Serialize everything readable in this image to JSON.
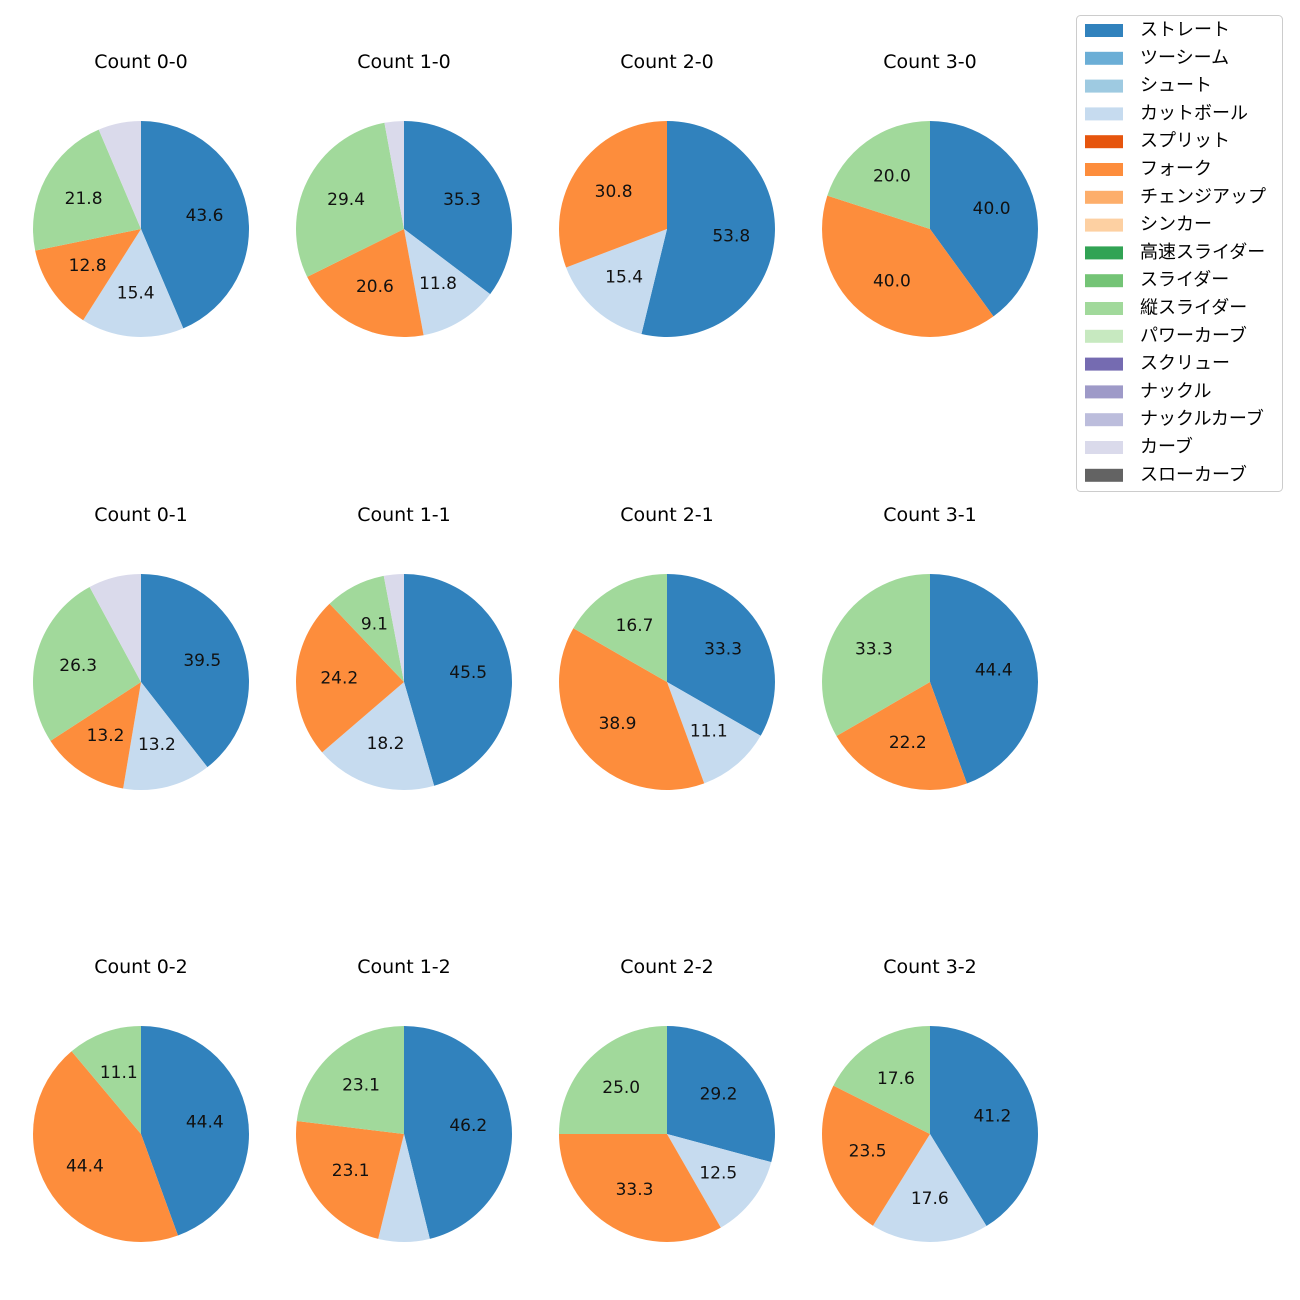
{
  "chart_data": {
    "type": "pie",
    "legend": {
      "placement": "top-right",
      "entries": [
        {
          "name": "ストレート",
          "color": "#3182bd"
        },
        {
          "name": "ツーシーム",
          "color": "#6baed6"
        },
        {
          "name": "シュート",
          "color": "#9ecae1"
        },
        {
          "name": "カットボール",
          "color": "#c6dbef"
        },
        {
          "name": "スプリット",
          "color": "#e6550d"
        },
        {
          "name": "フォーク",
          "color": "#fd8d3c"
        },
        {
          "name": "チェンジアップ",
          "color": "#fdae6b"
        },
        {
          "name": "シンカー",
          "color": "#fdd0a2"
        },
        {
          "name": "高速スライダー",
          "color": "#31a354"
        },
        {
          "name": "スライダー",
          "color": "#74c476"
        },
        {
          "name": "縦スライダー",
          "color": "#a1d99b"
        },
        {
          "name": "パワーカーブ",
          "color": "#c7e9c0"
        },
        {
          "name": "スクリュー",
          "color": "#756bb1"
        },
        {
          "name": "ナックル",
          "color": "#9e9ac8"
        },
        {
          "name": "ナックルカーブ",
          "color": "#bcbddc"
        },
        {
          "name": "カーブ",
          "color": "#dadaeb"
        },
        {
          "name": "スローカーブ",
          "color": "#636363"
        }
      ]
    },
    "charts": [
      {
        "title": "Count 0-0",
        "slices": [
          {
            "pitch": "ストレート",
            "value": 43.6,
            "label": "43.6"
          },
          {
            "pitch": "カットボール",
            "value": 15.4,
            "label": "15.4"
          },
          {
            "pitch": "フォーク",
            "value": 12.8,
            "label": "12.8"
          },
          {
            "pitch": "縦スライダー",
            "value": 21.8,
            "label": "21.8"
          },
          {
            "pitch": "カーブ",
            "value": 6.4,
            "label": ""
          }
        ]
      },
      {
        "title": "Count 1-0",
        "slices": [
          {
            "pitch": "ストレート",
            "value": 35.3,
            "label": "35.3"
          },
          {
            "pitch": "カットボール",
            "value": 11.8,
            "label": "11.8"
          },
          {
            "pitch": "フォーク",
            "value": 20.6,
            "label": "20.6"
          },
          {
            "pitch": "縦スライダー",
            "value": 29.4,
            "label": "29.4"
          },
          {
            "pitch": "カーブ",
            "value": 2.9,
            "label": ""
          }
        ]
      },
      {
        "title": "Count 2-0",
        "slices": [
          {
            "pitch": "ストレート",
            "value": 53.8,
            "label": "53.8"
          },
          {
            "pitch": "カットボール",
            "value": 15.4,
            "label": "15.4"
          },
          {
            "pitch": "フォーク",
            "value": 30.8,
            "label": "30.8"
          }
        ]
      },
      {
        "title": "Count 3-0",
        "slices": [
          {
            "pitch": "ストレート",
            "value": 40.0,
            "label": "40.0"
          },
          {
            "pitch": "フォーク",
            "value": 40.0,
            "label": "40.0"
          },
          {
            "pitch": "縦スライダー",
            "value": 20.0,
            "label": "20.0"
          }
        ]
      },
      {
        "title": "Count 0-1",
        "slices": [
          {
            "pitch": "ストレート",
            "value": 39.5,
            "label": "39.5"
          },
          {
            "pitch": "カットボール",
            "value": 13.2,
            "label": "13.2"
          },
          {
            "pitch": "フォーク",
            "value": 13.2,
            "label": "13.2"
          },
          {
            "pitch": "縦スライダー",
            "value": 26.3,
            "label": "26.3"
          },
          {
            "pitch": "カーブ",
            "value": 7.9,
            "label": ""
          }
        ]
      },
      {
        "title": "Count 1-1",
        "slices": [
          {
            "pitch": "ストレート",
            "value": 45.5,
            "label": "45.5"
          },
          {
            "pitch": "カットボール",
            "value": 18.2,
            "label": "18.2"
          },
          {
            "pitch": "フォーク",
            "value": 24.2,
            "label": "24.2"
          },
          {
            "pitch": "縦スライダー",
            "value": 9.1,
            "label": "9.1"
          },
          {
            "pitch": "カーブ",
            "value": 3.0,
            "label": ""
          }
        ]
      },
      {
        "title": "Count 2-1",
        "slices": [
          {
            "pitch": "ストレート",
            "value": 33.3,
            "label": "33.3"
          },
          {
            "pitch": "カットボール",
            "value": 11.1,
            "label": "11.1"
          },
          {
            "pitch": "フォーク",
            "value": 38.9,
            "label": "38.9"
          },
          {
            "pitch": "縦スライダー",
            "value": 16.7,
            "label": "16.7"
          }
        ]
      },
      {
        "title": "Count 3-1",
        "slices": [
          {
            "pitch": "ストレート",
            "value": 44.4,
            "label": "44.4"
          },
          {
            "pitch": "フォーク",
            "value": 22.2,
            "label": "22.2"
          },
          {
            "pitch": "縦スライダー",
            "value": 33.3,
            "label": "33.3"
          }
        ]
      },
      {
        "title": "Count 0-2",
        "slices": [
          {
            "pitch": "ストレート",
            "value": 44.4,
            "label": "44.4"
          },
          {
            "pitch": "フォーク",
            "value": 44.4,
            "label": "44.4"
          },
          {
            "pitch": "縦スライダー",
            "value": 11.1,
            "label": "11.1"
          }
        ]
      },
      {
        "title": "Count 1-2",
        "slices": [
          {
            "pitch": "ストレート",
            "value": 46.2,
            "label": "46.2"
          },
          {
            "pitch": "カットボール",
            "value": 7.7,
            "label": ""
          },
          {
            "pitch": "フォーク",
            "value": 23.1,
            "label": "23.1"
          },
          {
            "pitch": "縦スライダー",
            "value": 23.1,
            "label": "23.1"
          }
        ]
      },
      {
        "title": "Count 2-2",
        "slices": [
          {
            "pitch": "ストレート",
            "value": 29.2,
            "label": "29.2"
          },
          {
            "pitch": "カットボール",
            "value": 12.5,
            "label": "12.5"
          },
          {
            "pitch": "フォーク",
            "value": 33.3,
            "label": "33.3"
          },
          {
            "pitch": "縦スライダー",
            "value": 25.0,
            "label": "25.0"
          }
        ]
      },
      {
        "title": "Count 3-2",
        "slices": [
          {
            "pitch": "ストレート",
            "value": 41.2,
            "label": "41.2"
          },
          {
            "pitch": "カットボール",
            "value": 17.6,
            "label": "17.6"
          },
          {
            "pitch": "フォーク",
            "value": 23.5,
            "label": "23.5"
          },
          {
            "pitch": "縦スライダー",
            "value": 17.6,
            "label": "17.6"
          }
        ]
      }
    ]
  }
}
